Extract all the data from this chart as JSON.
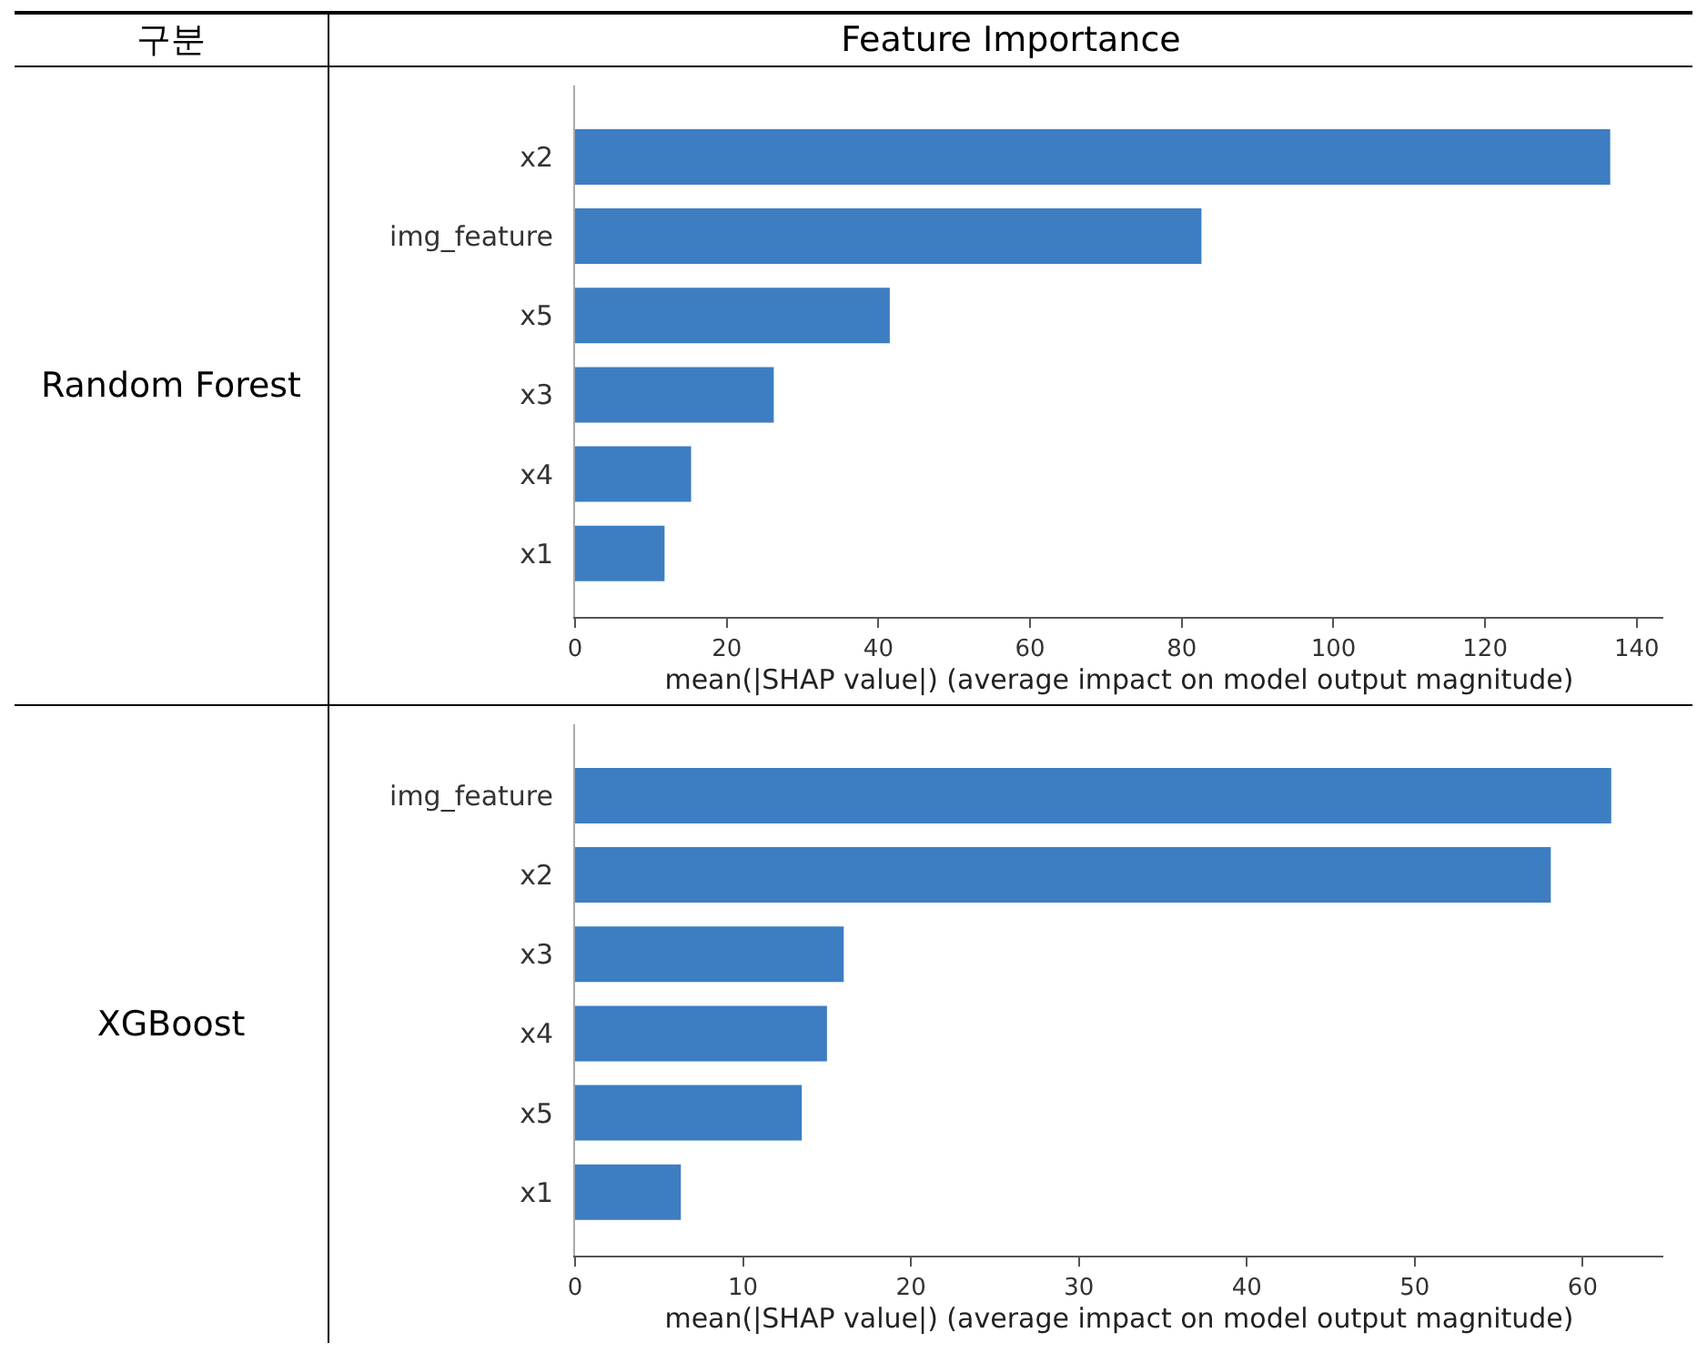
{
  "chart_data": [
    {
      "type": "bar",
      "title": "Random Forest",
      "orientation": "horizontal",
      "annotations": [
        "구분",
        "Feature Importance"
      ],
      "xlabel": "mean(|SHAP value|) (average impact on model output magnitude)",
      "categories": [
        "x2",
        "img_feature",
        "x5",
        "x3",
        "x4",
        "x1"
      ],
      "values": [
        136.5,
        82.6,
        41.5,
        26.2,
        15.3,
        11.8
      ],
      "color": "#3d7dc1",
      "xlim": [
        0,
        143.5
      ],
      "xticks": [
        0,
        20,
        40,
        60,
        80,
        100,
        120,
        140
      ],
      "grid": false
    },
    {
      "type": "bar",
      "title": "XGBoost",
      "orientation": "horizontal",
      "xlabel": "mean(|SHAP value|) (average impact on model output magnitude)",
      "categories": [
        "img_feature",
        "x2",
        "x3",
        "x4",
        "x5",
        "x1"
      ],
      "values": [
        61.7,
        58.1,
        16.0,
        15.0,
        13.5,
        6.3
      ],
      "color": "#3d7dc1",
      "xlim": [
        0,
        64.8
      ],
      "xticks": [
        0,
        10,
        20,
        30,
        40,
        50,
        60
      ],
      "grid": false
    }
  ]
}
